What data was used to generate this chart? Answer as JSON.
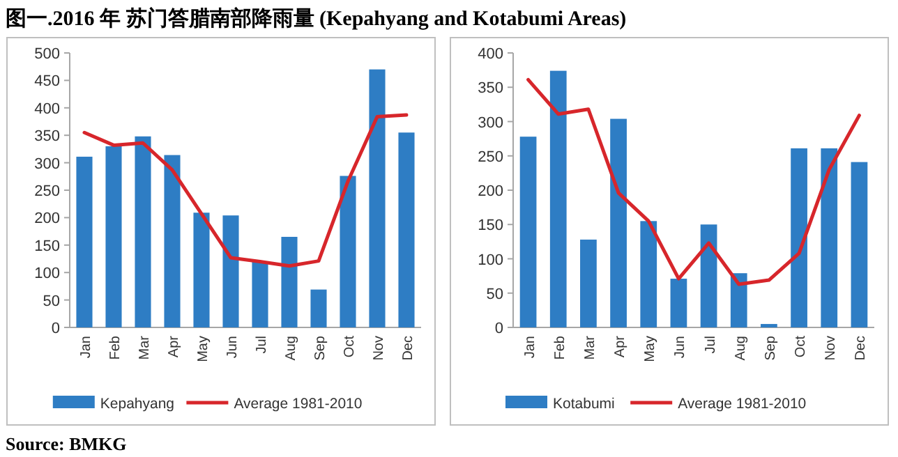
{
  "chart_data": [
    {
      "type": "bar",
      "title": "图一.2016 年 苏门答腊南部降雨量 (Kepahyang and Kotabumi Areas)",
      "annotations": [
        "Source: BMKG"
      ],
      "categories": [
        "Jan",
        "Feb",
        "Mar",
        "Apr",
        "May",
        "Jun",
        "Jul",
        "Aug",
        "Sep",
        "Oct",
        "Nov",
        "Dec"
      ],
      "series": [
        {
          "name": "Kepahyang",
          "color": "#2e7dc4",
          "values": [
            311,
            330,
            348,
            314,
            209,
            204,
            120,
            165,
            69,
            276,
            470,
            355
          ]
        },
        {
          "name": "Average 1981-2010",
          "type": "line",
          "color": "#d7262b",
          "values": [
            355,
            332,
            336,
            287,
            207,
            127,
            120,
            112,
            121,
            266,
            384,
            387
          ]
        }
      ],
      "ylim": [
        0,
        500
      ],
      "yticks": [
        0,
        50,
        100,
        150,
        200,
        250,
        300,
        350,
        400,
        450,
        500
      ],
      "legend": "bottom"
    },
    {
      "type": "bar",
      "categories": [
        "Jan",
        "Feb",
        "Mar",
        "Apr",
        "May",
        "Jun",
        "Jul",
        "Aug",
        "Sep",
        "Oct",
        "Nov",
        "Dec"
      ],
      "series": [
        {
          "name": "Kotabumi",
          "color": "#2e7dc4",
          "values": [
            278,
            374,
            128,
            304,
            155,
            71,
            150,
            79,
            5,
            261,
            261,
            241
          ]
        },
        {
          "name": "Average 1981-2010",
          "type": "line",
          "color": "#d7262b",
          "values": [
            361,
            311,
            318,
            196,
            155,
            71,
            123,
            63,
            69,
            108,
            230,
            309
          ]
        }
      ],
      "ylim": [
        0,
        400
      ],
      "yticks": [
        0,
        50,
        100,
        150,
        200,
        250,
        300,
        350,
        400
      ],
      "legend": "bottom"
    }
  ]
}
